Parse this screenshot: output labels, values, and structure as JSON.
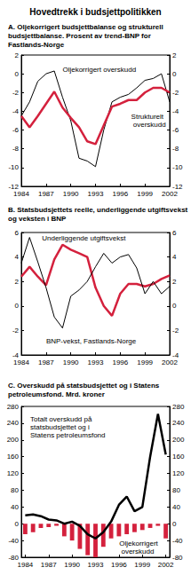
{
  "title": "Hovedtrekk i budsjettpolitikken",
  "chart_data": [
    {
      "type": "line",
      "title": "A. Oljekorrigert budsjettbalanse og strukturell budsjettbalanse. Prosent av trend-BNP for Fastlands-Norge",
      "categories": [
        1984,
        null,
        null,
        1987,
        null,
        null,
        1990,
        null,
        null,
        1993,
        null,
        null,
        1996,
        null,
        null,
        1999,
        null,
        null,
        2002
      ],
      "series": [
        {
          "name": "Oljekorrigert overskudd",
          "color": "#000000",
          "line_style": "thin",
          "values": [
            -4.5,
            -3.0,
            -0.8,
            0.0,
            0.3,
            -2.5,
            -5.0,
            -9.0,
            -9.3,
            -9.9,
            -6.0,
            -3.0,
            -2.5,
            -2.2,
            -1.5,
            -0.7,
            -0.5,
            0.0,
            -3.0
          ]
        },
        {
          "name": "Strukturelt overskudd",
          "color": "#d4213d",
          "line_style": "thick",
          "values": [
            -4.5,
            -5.7,
            -4.5,
            -3.2,
            -1.9,
            -3.6,
            -4.7,
            -5.7,
            -7.2,
            -7.5,
            -5.5,
            -3.5,
            -3.2,
            -2.8,
            -2.8,
            -2.0,
            -1.5,
            -1.5,
            -2.0
          ]
        }
      ],
      "ylim": [
        -12,
        2
      ],
      "yticks": [
        -12,
        -10,
        -8,
        -6,
        -4,
        -2,
        0,
        2
      ],
      "grid": false
    },
    {
      "type": "line",
      "title": "B. Statsbudsjettets reelle, underliggende utgiftsvekst og veksten i BNP",
      "categories": [
        1984,
        null,
        null,
        1987,
        null,
        null,
        1990,
        null,
        null,
        1993,
        null,
        null,
        1996,
        null,
        null,
        1999,
        null,
        null,
        2002
      ],
      "series": [
        {
          "name": "Underliggende utgiftsvekst",
          "color": "#d4213d",
          "line_style": "thick",
          "values": [
            2.4,
            3.2,
            2.4,
            1.7,
            3.8,
            5.0,
            4.6,
            4.3,
            4.0,
            1.5,
            0.0,
            -0.8,
            1.0,
            1.8,
            1.8,
            1.6,
            1.8,
            2.2,
            2.5
          ]
        },
        {
          "name": "BNP-vekst, Fastlands-Norge",
          "color": "#000000",
          "line_style": "thin",
          "values": [
            3.5,
            5.6,
            3.6,
            1.5,
            -0.9,
            -1.8,
            0.8,
            1.3,
            2.0,
            3.2,
            4.3,
            3.5,
            4.0,
            4.2,
            3.1,
            1.0,
            2.0,
            1.0,
            1.6
          ]
        }
      ],
      "ylim": [
        -4,
        6
      ],
      "yticks": [
        -4,
        -2,
        0,
        2,
        4,
        6
      ],
      "grid": false
    },
    {
      "type": "bar",
      "title": "C. Overskudd på statsbudsjettet og i Statens petroleumsfond. Mrd. kroner",
      "categories": [
        1984,
        null,
        null,
        1987,
        null,
        null,
        1990,
        null,
        null,
        1993,
        null,
        null,
        1996,
        null,
        null,
        1999,
        null,
        null,
        2002
      ],
      "series": [
        {
          "name": "Totalt overskudd på statsbudsjettet og i Statens petroleumsfond",
          "type": "line",
          "color": "#000000",
          "line_style": "thick",
          "values": [
            20,
            22,
            18,
            10,
            8,
            0,
            5,
            -5,
            -25,
            -35,
            -20,
            5,
            45,
            65,
            30,
            40,
            160,
            262,
            165
          ]
        },
        {
          "name": "Oljekorrigert overskudd",
          "type": "bar",
          "color": "#d4213d",
          "values": [
            -25,
            -20,
            -10,
            -8,
            -5,
            -30,
            -40,
            -60,
            -75,
            -80,
            -55,
            -35,
            -30,
            -25,
            -20,
            -15,
            -10,
            -5,
            -35
          ]
        }
      ],
      "ylim": [
        -80,
        280
      ],
      "yticks": [
        -80,
        -40,
        0,
        40,
        80,
        120,
        160,
        200,
        240,
        280
      ],
      "grid": false
    }
  ]
}
